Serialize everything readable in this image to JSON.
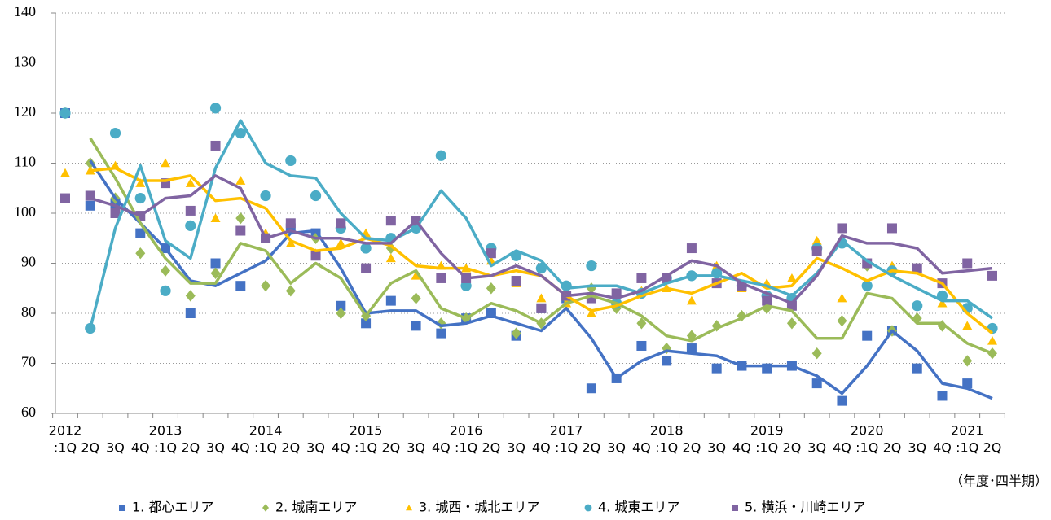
{
  "chart_data": {
    "type": "scatter_trend",
    "categories": [
      ":1Q",
      "2Q",
      "3Q",
      "4Q",
      ":1Q",
      "2Q",
      "3Q",
      "4Q",
      ":1Q",
      "2Q",
      "3Q",
      "4Q",
      ":1Q",
      "2Q",
      "3Q",
      "4Q",
      ":1Q",
      "2Q",
      "3Q",
      "4Q",
      ":1Q",
      "2Q",
      "3Q",
      "4Q",
      ":1Q",
      "2Q",
      "3Q",
      "4Q",
      ":1Q",
      "2Q",
      "3Q",
      "4Q",
      ":1Q",
      "2Q",
      "3Q",
      "4Q",
      ":1Q",
      "2Q"
    ],
    "year_labels": [
      "2012",
      null,
      null,
      null,
      "2013",
      null,
      null,
      null,
      "2014",
      null,
      null,
      null,
      "2015",
      null,
      null,
      null,
      "2016",
      null,
      null,
      null,
      "2017",
      null,
      null,
      null,
      "2018",
      null,
      null,
      null,
      "2019",
      null,
      null,
      null,
      "2020",
      null,
      null,
      null,
      "2021",
      null
    ],
    "x_unit_label": "（年度･四半期）",
    "ylim": [
      60,
      140
    ],
    "yticks": [
      60,
      70,
      80,
      90,
      100,
      110,
      120,
      130,
      140
    ],
    "grid": true,
    "series": [
      {
        "name": "1. 都心エリア",
        "color": "#4472c4",
        "marker": "square",
        "values": [
          120,
          101.5,
          102,
          96,
          93,
          80,
          90,
          85.5,
          95,
          97,
          96,
          81.5,
          78,
          82.5,
          77.5,
          76,
          79,
          80,
          75.5,
          81,
          83,
          65,
          67,
          73.5,
          70.5,
          73,
          69,
          69.5,
          69,
          69.5,
          66,
          62.5,
          75.5,
          76.5,
          69,
          63.5,
          66,
          null
        ],
        "trend": [
          null,
          110.5,
          103,
          98,
          93,
          86.5,
          85.5,
          88,
          90.5,
          96,
          96.5,
          89,
          80,
          80.5,
          80.5,
          77.5,
          78,
          79.5,
          78,
          76.5,
          81,
          75,
          67,
          70.5,
          72.5,
          72,
          71.5,
          69.5,
          69.5,
          69.5,
          67.5,
          64,
          69.5,
          76.5,
          72.5,
          66,
          65,
          63
        ]
      },
      {
        "name": "2. 城南エリア",
        "color": "#9bbb59",
        "marker": "diamond",
        "values": [
          120,
          110,
          103,
          92,
          88.5,
          83.5,
          88,
          99,
          85.5,
          84.5,
          95,
          80,
          79.5,
          93,
          83,
          78,
          79,
          85,
          76,
          78,
          83,
          85,
          81,
          78,
          73,
          75.5,
          77.5,
          79.5,
          81,
          78,
          72,
          78.5,
          89.5,
          76.5,
          79,
          77.5,
          70.5,
          72
        ],
        "trend": [
          null,
          115,
          107,
          98,
          91,
          86,
          86,
          94,
          92.5,
          86,
          90,
          87,
          79.5,
          86,
          88.5,
          81,
          79,
          82,
          80.5,
          78,
          82,
          83.5,
          82,
          79.5,
          75.5,
          74.5,
          77,
          79,
          81.5,
          80.5,
          75,
          75,
          84,
          83,
          78,
          78,
          74,
          72
        ]
      },
      {
        "name": "3. 城西・城北エリア",
        "color": "#ffc000",
        "marker": "triangle",
        "values": [
          108,
          108.5,
          109.5,
          106,
          110,
          106,
          99,
          106.5,
          96,
          94,
          92,
          94,
          96,
          91,
          87.5,
          89.5,
          89,
          90.5,
          86,
          83,
          82,
          80,
          82,
          84.5,
          85,
          82.5,
          89.5,
          85,
          86,
          87,
          94.5,
          83,
          90,
          89.5,
          89,
          82,
          77.5,
          74.5
        ],
        "trend": [
          null,
          108.5,
          109,
          106.5,
          106.5,
          107.5,
          102.5,
          103,
          101,
          94.5,
          92.5,
          93,
          95,
          93.5,
          89.5,
          89,
          89,
          87.5,
          88.5,
          87.5,
          83.5,
          80.5,
          81.5,
          83.5,
          85,
          84,
          86,
          88,
          85,
          85.5,
          91,
          89,
          86.5,
          88.5,
          88,
          86,
          80,
          76
        ]
      },
      {
        "name": "4. 城東エリア",
        "color": "#4bacc6",
        "marker": "circle",
        "values": [
          120,
          77,
          116,
          103,
          84.5,
          97.5,
          121,
          116,
          103.5,
          110.5,
          103.5,
          97,
          93,
          95,
          97,
          111.5,
          85.5,
          93,
          91.5,
          89,
          85.5,
          89.5,
          82,
          84,
          87,
          87.5,
          88,
          85.5,
          83.5,
          83,
          93,
          94,
          85.5,
          88.5,
          81.5,
          83.5,
          81,
          77
        ],
        "trend": [
          null,
          77,
          97,
          109.5,
          94.5,
          91,
          109,
          118.5,
          110,
          107.5,
          107,
          100,
          95,
          94.5,
          97,
          104.5,
          99,
          89.5,
          92.5,
          90.5,
          85,
          85.5,
          85.5,
          84,
          86,
          87.5,
          87.5,
          86.5,
          85.5,
          83.5,
          88,
          94.5,
          90.5,
          87.5,
          85,
          82.5,
          82.5,
          79
        ]
      },
      {
        "name": "5. 横浜・川崎エリア",
        "color": "#8064a2",
        "marker": "square",
        "values": [
          103,
          103.5,
          100,
          99.5,
          106,
          100.5,
          113.5,
          96.5,
          95,
          98,
          91.5,
          98,
          89,
          98.5,
          98.5,
          87,
          87,
          92,
          86.5,
          81,
          83.5,
          83,
          84,
          87,
          87,
          93,
          86,
          85.5,
          82.5,
          81.5,
          92.5,
          97,
          90,
          97,
          89,
          86,
          90,
          87.5
        ],
        "trend": [
          null,
          103,
          101.5,
          99.5,
          103,
          103.5,
          107.5,
          105,
          95,
          96.5,
          95,
          95,
          94,
          94,
          98.5,
          92,
          87,
          87.5,
          89.5,
          87.5,
          83.5,
          84,
          83,
          84.5,
          87.5,
          90.5,
          89.5,
          86,
          84,
          82,
          87.5,
          95.5,
          94,
          94,
          93,
          88,
          88.5,
          89
        ]
      }
    ]
  }
}
